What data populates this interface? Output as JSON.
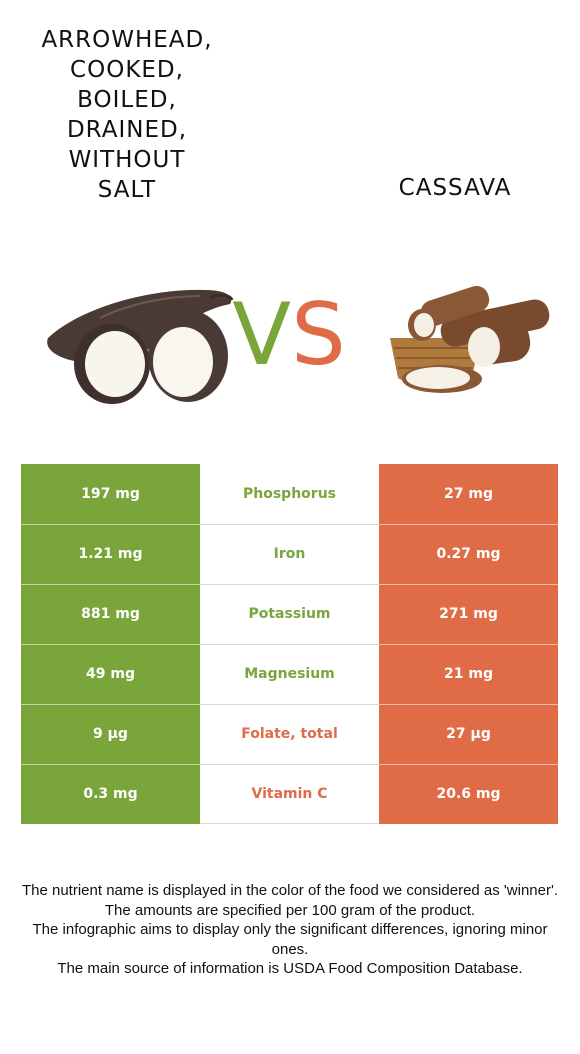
{
  "food_left": {
    "name": "ARROWHEAD,\nCOOKED,\nBOILED,\nDRAINED,\nWITHOUT\nSALT",
    "color": "#7aa53a"
  },
  "food_right": {
    "name": "CASSAVA",
    "color": "#e06b47"
  },
  "vs": {
    "v": "V",
    "s": "S"
  },
  "rows": [
    {
      "left": "197 mg",
      "nutrient": "Phosphorus",
      "right": "27 mg",
      "winner": "left"
    },
    {
      "left": "1.21 mg",
      "nutrient": "Iron",
      "right": "0.27 mg",
      "winner": "left"
    },
    {
      "left": "881 mg",
      "nutrient": "Potassium",
      "right": "271 mg",
      "winner": "left"
    },
    {
      "left": "49 mg",
      "nutrient": "Magnesium",
      "right": "21 mg",
      "winner": "left"
    },
    {
      "left": "9 µg",
      "nutrient": "Folate, total",
      "right": "27 µg",
      "winner": "right"
    },
    {
      "left": "0.3 mg",
      "nutrient": "Vitamin C",
      "right": "20.6 mg",
      "winner": "right"
    }
  ],
  "footer": [
    "The nutrient name is displayed in the color of the food we considered as 'winner'.",
    "The amounts are specified per 100 gram of the product.",
    "The infographic aims to display only the significant differences, ignoring minor ones.",
    "The main source of information is USDA Food Composition Database."
  ]
}
